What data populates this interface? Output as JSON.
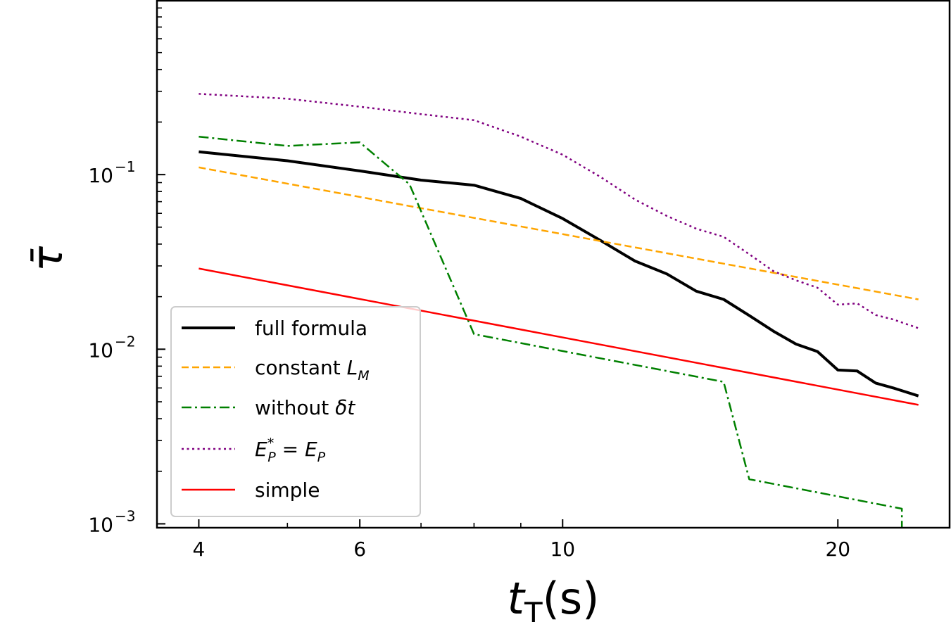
{
  "chart_data": {
    "type": "line",
    "xlabel": {
      "main": "t",
      "sub": "T",
      "unit": "(s)"
    },
    "ylabel": "τ̄",
    "xscale": "log",
    "yscale": "log",
    "xlim": [
      3.6,
      26.5
    ],
    "ylim": [
      0.00095,
      1.0
    ],
    "xticks": [
      {
        "value": 4,
        "label": "4"
      },
      {
        "value": 6,
        "label": "6"
      },
      {
        "value": 10,
        "label": "10"
      },
      {
        "value": 20,
        "label": "20"
      }
    ],
    "yticks": [
      {
        "value": 0.001,
        "base": "10",
        "exp": "−3"
      },
      {
        "value": 0.01,
        "base": "10",
        "exp": "−2"
      },
      {
        "value": 0.1,
        "base": "10",
        "exp": "−1"
      }
    ],
    "legend": {
      "position": "lower-left"
    },
    "series": [
      {
        "name": "full formula",
        "color": "#000000",
        "style": "solid",
        "width": 4,
        "x": [
          4,
          5,
          6,
          7,
          8,
          9,
          10,
          11,
          12,
          13,
          14,
          15,
          16,
          17,
          18,
          19,
          20,
          21,
          22,
          23,
          24.5
        ],
        "y": [
          0.135,
          0.12,
          0.105,
          0.093,
          0.087,
          0.073,
          0.056,
          0.042,
          0.032,
          0.027,
          0.0215,
          0.0193,
          0.0156,
          0.0127,
          0.0107,
          0.0097,
          0.0076,
          0.0075,
          0.0064,
          0.006,
          0.0054
        ]
      },
      {
        "name": "constant L_M",
        "label_main": "constant ",
        "label_math": "L",
        "label_sub": "M",
        "color": "#ffa500",
        "style": "dashed",
        "width": 2.5,
        "x": [
          4,
          24.5
        ],
        "y": [
          0.11,
          0.0193
        ]
      },
      {
        "name": "without δt",
        "label_main": "without ",
        "label_math": "δt",
        "color": "#008000",
        "style": "dashdot",
        "width": 2.5,
        "x": [
          4,
          5,
          6,
          6.8,
          8,
          15,
          16,
          23.5,
          23.5
        ],
        "y": [
          0.165,
          0.146,
          0.153,
          0.088,
          0.0122,
          0.0065,
          0.0018,
          0.00122,
          0.00095
        ]
      },
      {
        "name": "E_P* = E_P",
        "color": "#800080",
        "style": "dotted",
        "width": 2.5,
        "x": [
          4,
          5,
          6,
          7,
          8,
          9,
          10,
          11,
          12,
          13,
          14,
          15,
          16,
          17,
          18,
          19,
          20,
          21,
          22,
          23,
          24.5
        ],
        "y": [
          0.29,
          0.272,
          0.245,
          0.222,
          0.205,
          0.165,
          0.13,
          0.097,
          0.072,
          0.058,
          0.049,
          0.044,
          0.035,
          0.028,
          0.0248,
          0.0225,
          0.018,
          0.0183,
          0.0157,
          0.0148,
          0.0132
        ]
      },
      {
        "name": "simple",
        "color": "#ff0000",
        "style": "solid",
        "width": 2.5,
        "x": [
          4,
          24.5
        ],
        "y": [
          0.029,
          0.0048
        ]
      }
    ]
  }
}
